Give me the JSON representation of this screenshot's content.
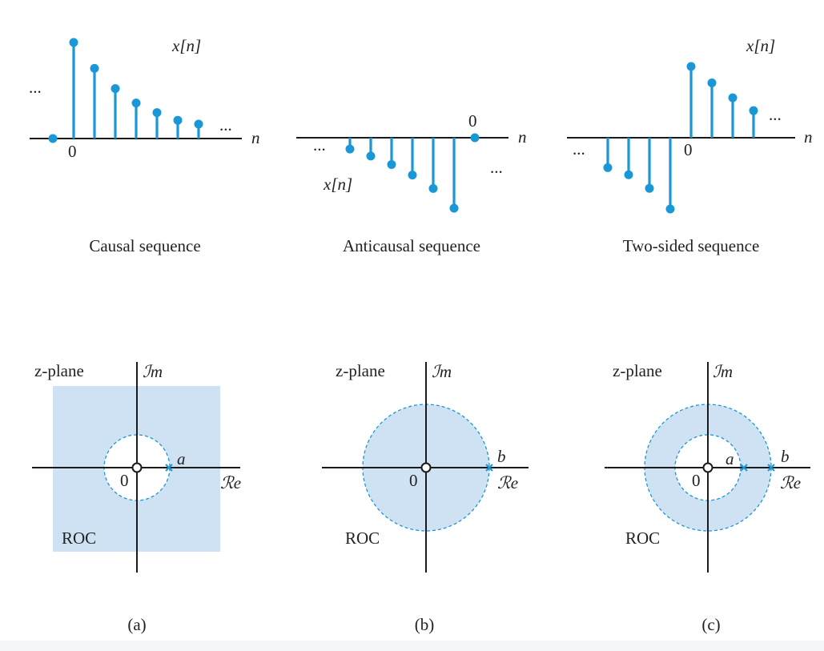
{
  "sequences": {
    "causal": {
      "caption": "Causal sequence",
      "signal_label": "x[n]",
      "axis_label": "n",
      "origin_label": "0",
      "ellipsis": "...",
      "samples": [
        0,
        1.0,
        0.73,
        0.52,
        0.37,
        0.27,
        0.19,
        0.15
      ]
    },
    "anticausal": {
      "caption": "Anticausal sequence",
      "signal_label": "x[n]",
      "axis_label": "n",
      "origin_label": "0",
      "ellipsis": "...",
      "samples": [
        -0.16,
        -0.26,
        -0.38,
        -0.53,
        -0.72,
        -1.0,
        0
      ]
    },
    "twosided": {
      "caption": "Two-sided sequence",
      "signal_label": "x[n]",
      "axis_label": "n",
      "origin_label": "0",
      "ellipsis": "...",
      "samples": [
        -0.42,
        -0.52,
        -0.71,
        -1.0,
        1.0,
        0.77,
        0.56,
        0.38
      ]
    }
  },
  "planes": {
    "a": {
      "plane_label": "z-plane",
      "im_label": "ℐm",
      "re_label": "ℛe",
      "origin_label": "0",
      "roc_label": "ROC",
      "pole_labels": [
        "a"
      ],
      "panel_label": "(a)"
    },
    "b": {
      "plane_label": "z-plane",
      "im_label": "ℐm",
      "re_label": "ℛe",
      "origin_label": "0",
      "roc_label": "ROC",
      "pole_labels": [
        "b"
      ],
      "panel_label": "(b)"
    },
    "c": {
      "plane_label": "z-plane",
      "im_label": "ℐm",
      "re_label": "ℛe",
      "origin_label": "0",
      "roc_label": "ROC",
      "pole_labels": [
        "a",
        "b"
      ],
      "panel_label": "(c)"
    }
  },
  "colors": {
    "stem": "#1a97d6",
    "roc_fill": "#cfe2f3",
    "axis": "#1a1a1a"
  }
}
